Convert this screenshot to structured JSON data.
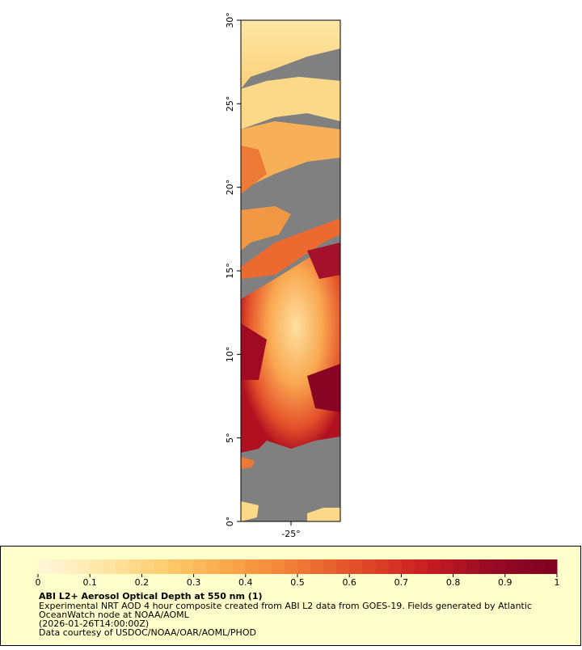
{
  "map": {
    "lat_ticks": [
      {
        "value": 0,
        "label": "0°"
      },
      {
        "value": 5,
        "label": "5°"
      },
      {
        "value": 10,
        "label": "10°"
      },
      {
        "value": 15,
        "label": "15°"
      },
      {
        "value": 20,
        "label": "20°"
      },
      {
        "value": 25,
        "label": "25°"
      },
      {
        "value": 30,
        "label": "30°"
      }
    ],
    "lat_range": [
      0,
      30
    ],
    "lon_ticks": [
      {
        "value": -25,
        "label": "-25°"
      }
    ]
  },
  "colorbar": {
    "range": [
      0,
      1
    ],
    "ticks": [
      0,
      0.1,
      0.2,
      0.3,
      0.4,
      0.5,
      0.6,
      0.7,
      0.8,
      0.9,
      1
    ],
    "colors": [
      "#fff6dc",
      "#fee7a6",
      "#fdcb6c",
      "#f9a548",
      "#f07a34",
      "#e04a27",
      "#c81d22",
      "#960a24",
      "#7e0022"
    ]
  },
  "caption": {
    "title": "ABI L2+ Aerosol Optical Depth at 550 nm (1)",
    "lines": [
      "Experimental NRT AOD 4 hour composite created from ABI L2 data from GOES-19. Fields generated by Atlantic",
      "OceanWatch node at NOAA/AOML",
      "(2026-01-26T14:00:00Z)",
      "Data courtesy of USDOC/NOAA/OAR/AOML/PHOD"
    ]
  }
}
